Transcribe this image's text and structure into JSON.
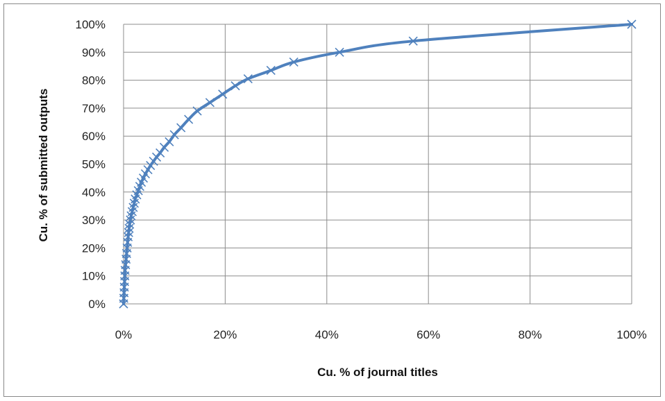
{
  "chart_data": {
    "type": "scatter",
    "xlabel": "Cu. % of journal titles",
    "ylabel": "Cu. % of submitted outputs",
    "xlim": [
      0,
      100
    ],
    "ylim": [
      0,
      100
    ],
    "x_ticks": [
      "0%",
      "20%",
      "40%",
      "60%",
      "80%",
      "100%"
    ],
    "y_ticks": [
      "0%",
      "10%",
      "20%",
      "30%",
      "40%",
      "50%",
      "60%",
      "70%",
      "80%",
      "90%",
      "100%"
    ],
    "grid": true,
    "legend": "none",
    "line": true,
    "marker": "x",
    "color": "#4f81bd",
    "series": [
      {
        "x": [
          0,
          0.05,
          0.1,
          0.15,
          0.2,
          0.25,
          0.3,
          0.4,
          0.5,
          0.6,
          0.7,
          0.8,
          0.9,
          1.0,
          1.1,
          1.2,
          1.35,
          1.5,
          1.7,
          1.9,
          2.1,
          2.3,
          2.6,
          2.9,
          3.2,
          3.5,
          3.9,
          4.3,
          4.8,
          5.3,
          5.9,
          6.5,
          7.2,
          8.0,
          9.0,
          10.0,
          11.3,
          12.8,
          14.5,
          17.0,
          19.5,
          22.0,
          24.5,
          29.0,
          33.5,
          42.5,
          57.0,
          100
        ],
        "y": [
          0,
          2,
          4,
          6,
          8,
          10,
          12,
          14,
          16,
          18,
          20,
          22,
          24,
          25.5,
          27,
          28.5,
          30,
          31.5,
          33,
          34.5,
          36,
          37.5,
          39,
          40.5,
          42,
          43.5,
          45,
          46.5,
          48,
          49.5,
          51,
          52.5,
          54,
          56,
          58,
          60.5,
          63,
          66,
          69,
          72,
          75,
          78,
          80.5,
          83.5,
          86.5,
          90,
          94,
          100
        ]
      }
    ]
  }
}
